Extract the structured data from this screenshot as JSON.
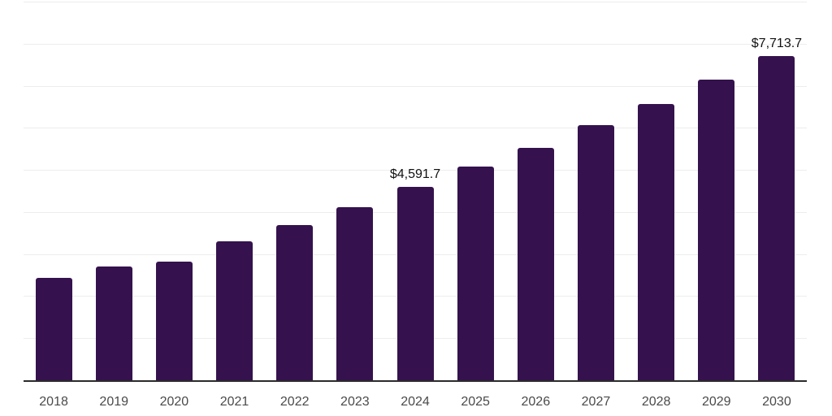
{
  "chart_data": {
    "type": "bar",
    "title": "",
    "xlabel": "",
    "ylabel": "",
    "categories": [
      "2018",
      "2019",
      "2020",
      "2021",
      "2022",
      "2023",
      "2024",
      "2025",
      "2026",
      "2027",
      "2028",
      "2029",
      "2030"
    ],
    "values": [
      2440,
      2710,
      2825,
      3310,
      3695,
      4120,
      4591.7,
      5070,
      5530,
      6055,
      6575,
      7140,
      7713.7
    ],
    "data_labels": {
      "2024": "$4,591.7",
      "2030": "$7,713.7"
    },
    "ylim": [
      0,
      9000
    ],
    "gridline_step": 1000,
    "grid": "horizontal",
    "legend": "none",
    "y_axis_tick_labels_visible": false
  },
  "colors": {
    "bar_fill": "#35124d",
    "axis_line": "#2b2b2b",
    "tick_label": "#4a4a4a",
    "data_label": "#111111",
    "gridline": "#ededed",
    "background": "#ffffff"
  }
}
